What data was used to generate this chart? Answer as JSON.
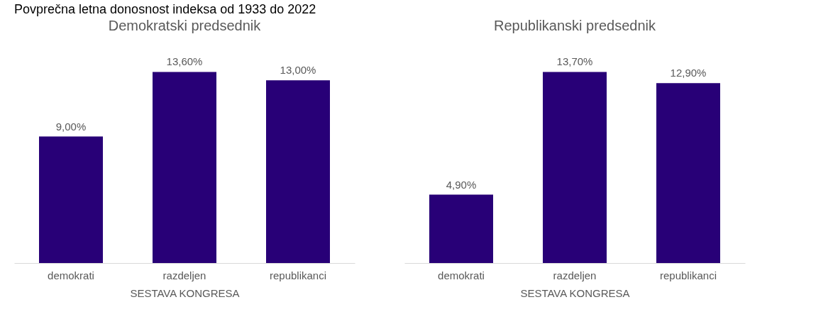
{
  "chart_data": [
    {
      "type": "bar",
      "title": "Demokratski predsednik",
      "xlabel": "SESTAVA KONGRESA",
      "annotations": [
        "Povprečna letna donosnost indeksa od 1933 do 2022"
      ],
      "categories": [
        "demokrati",
        "razdeljen",
        "republikanci"
      ],
      "values": [
        9.0,
        13.6,
        13.0
      ],
      "value_labels": [
        "9,00%",
        "13,60%",
        "13,00%"
      ],
      "color": "#280077",
      "grid": false
    },
    {
      "type": "bar",
      "title": "Republikanski predsednik",
      "xlabel": "SESTAVA KONGRESA",
      "categories": [
        "demokrati",
        "razdeljen",
        "republikanci"
      ],
      "values": [
        4.9,
        13.7,
        12.9
      ],
      "value_labels": [
        "4,90%",
        "13,70%",
        "12,90%"
      ],
      "color": "#280077",
      "grid": false
    }
  ]
}
